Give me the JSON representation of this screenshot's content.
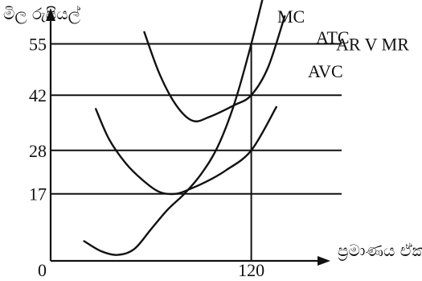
{
  "chart_data": {
    "type": "line",
    "title": "",
    "ylabel": "මිල රුපියල්",
    "xlabel": "ප්‍රමාණය ඒකක",
    "x_origin_label": "0",
    "x_ticks": [
      {
        "value": 120,
        "label": "120"
      }
    ],
    "y_ticks": [
      {
        "value": 55,
        "label": "55"
      },
      {
        "value": 42,
        "label": "42"
      },
      {
        "value": 28,
        "label": "28"
      },
      {
        "value": 17,
        "label": "17"
      }
    ],
    "xlim": [
      0,
      150
    ],
    "ylim": [
      0,
      75
    ],
    "grid": false,
    "horizontal_lines": [
      {
        "y": 55,
        "x_end": 150,
        "label": "AR V MR"
      },
      {
        "y": 42,
        "x_end": 150
      },
      {
        "y": 28,
        "x_end": 150
      },
      {
        "y": 17,
        "x_end": 150
      }
    ],
    "vertical_lines": [
      {
        "x": 120,
        "y_top": 55
      }
    ],
    "series": [
      {
        "name": "MC",
        "x": [
          20,
          30,
          40,
          50,
          60,
          70,
          80,
          90,
          100,
          110,
          120,
          130
        ],
        "y": [
          5,
          2.5,
          1.5,
          3,
          8,
          13,
          17,
          22,
          29,
          40,
          55,
          72
        ]
      },
      {
        "name": "ATC",
        "x": [
          56,
          65,
          75,
          85,
          95,
          110,
          120,
          130,
          140
        ],
        "y": [
          58,
          47.5,
          39.5,
          35.5,
          36.5,
          39.5,
          42,
          49,
          62
        ]
      },
      {
        "name": "AVC",
        "x": [
          27,
          35,
          45,
          55,
          65,
          75,
          85,
          95,
          105,
          120,
          135
        ],
        "y": [
          38.5,
          30.8,
          24.7,
          20.5,
          17.5,
          17,
          18.5,
          20.5,
          23,
          28,
          39
        ]
      }
    ]
  }
}
